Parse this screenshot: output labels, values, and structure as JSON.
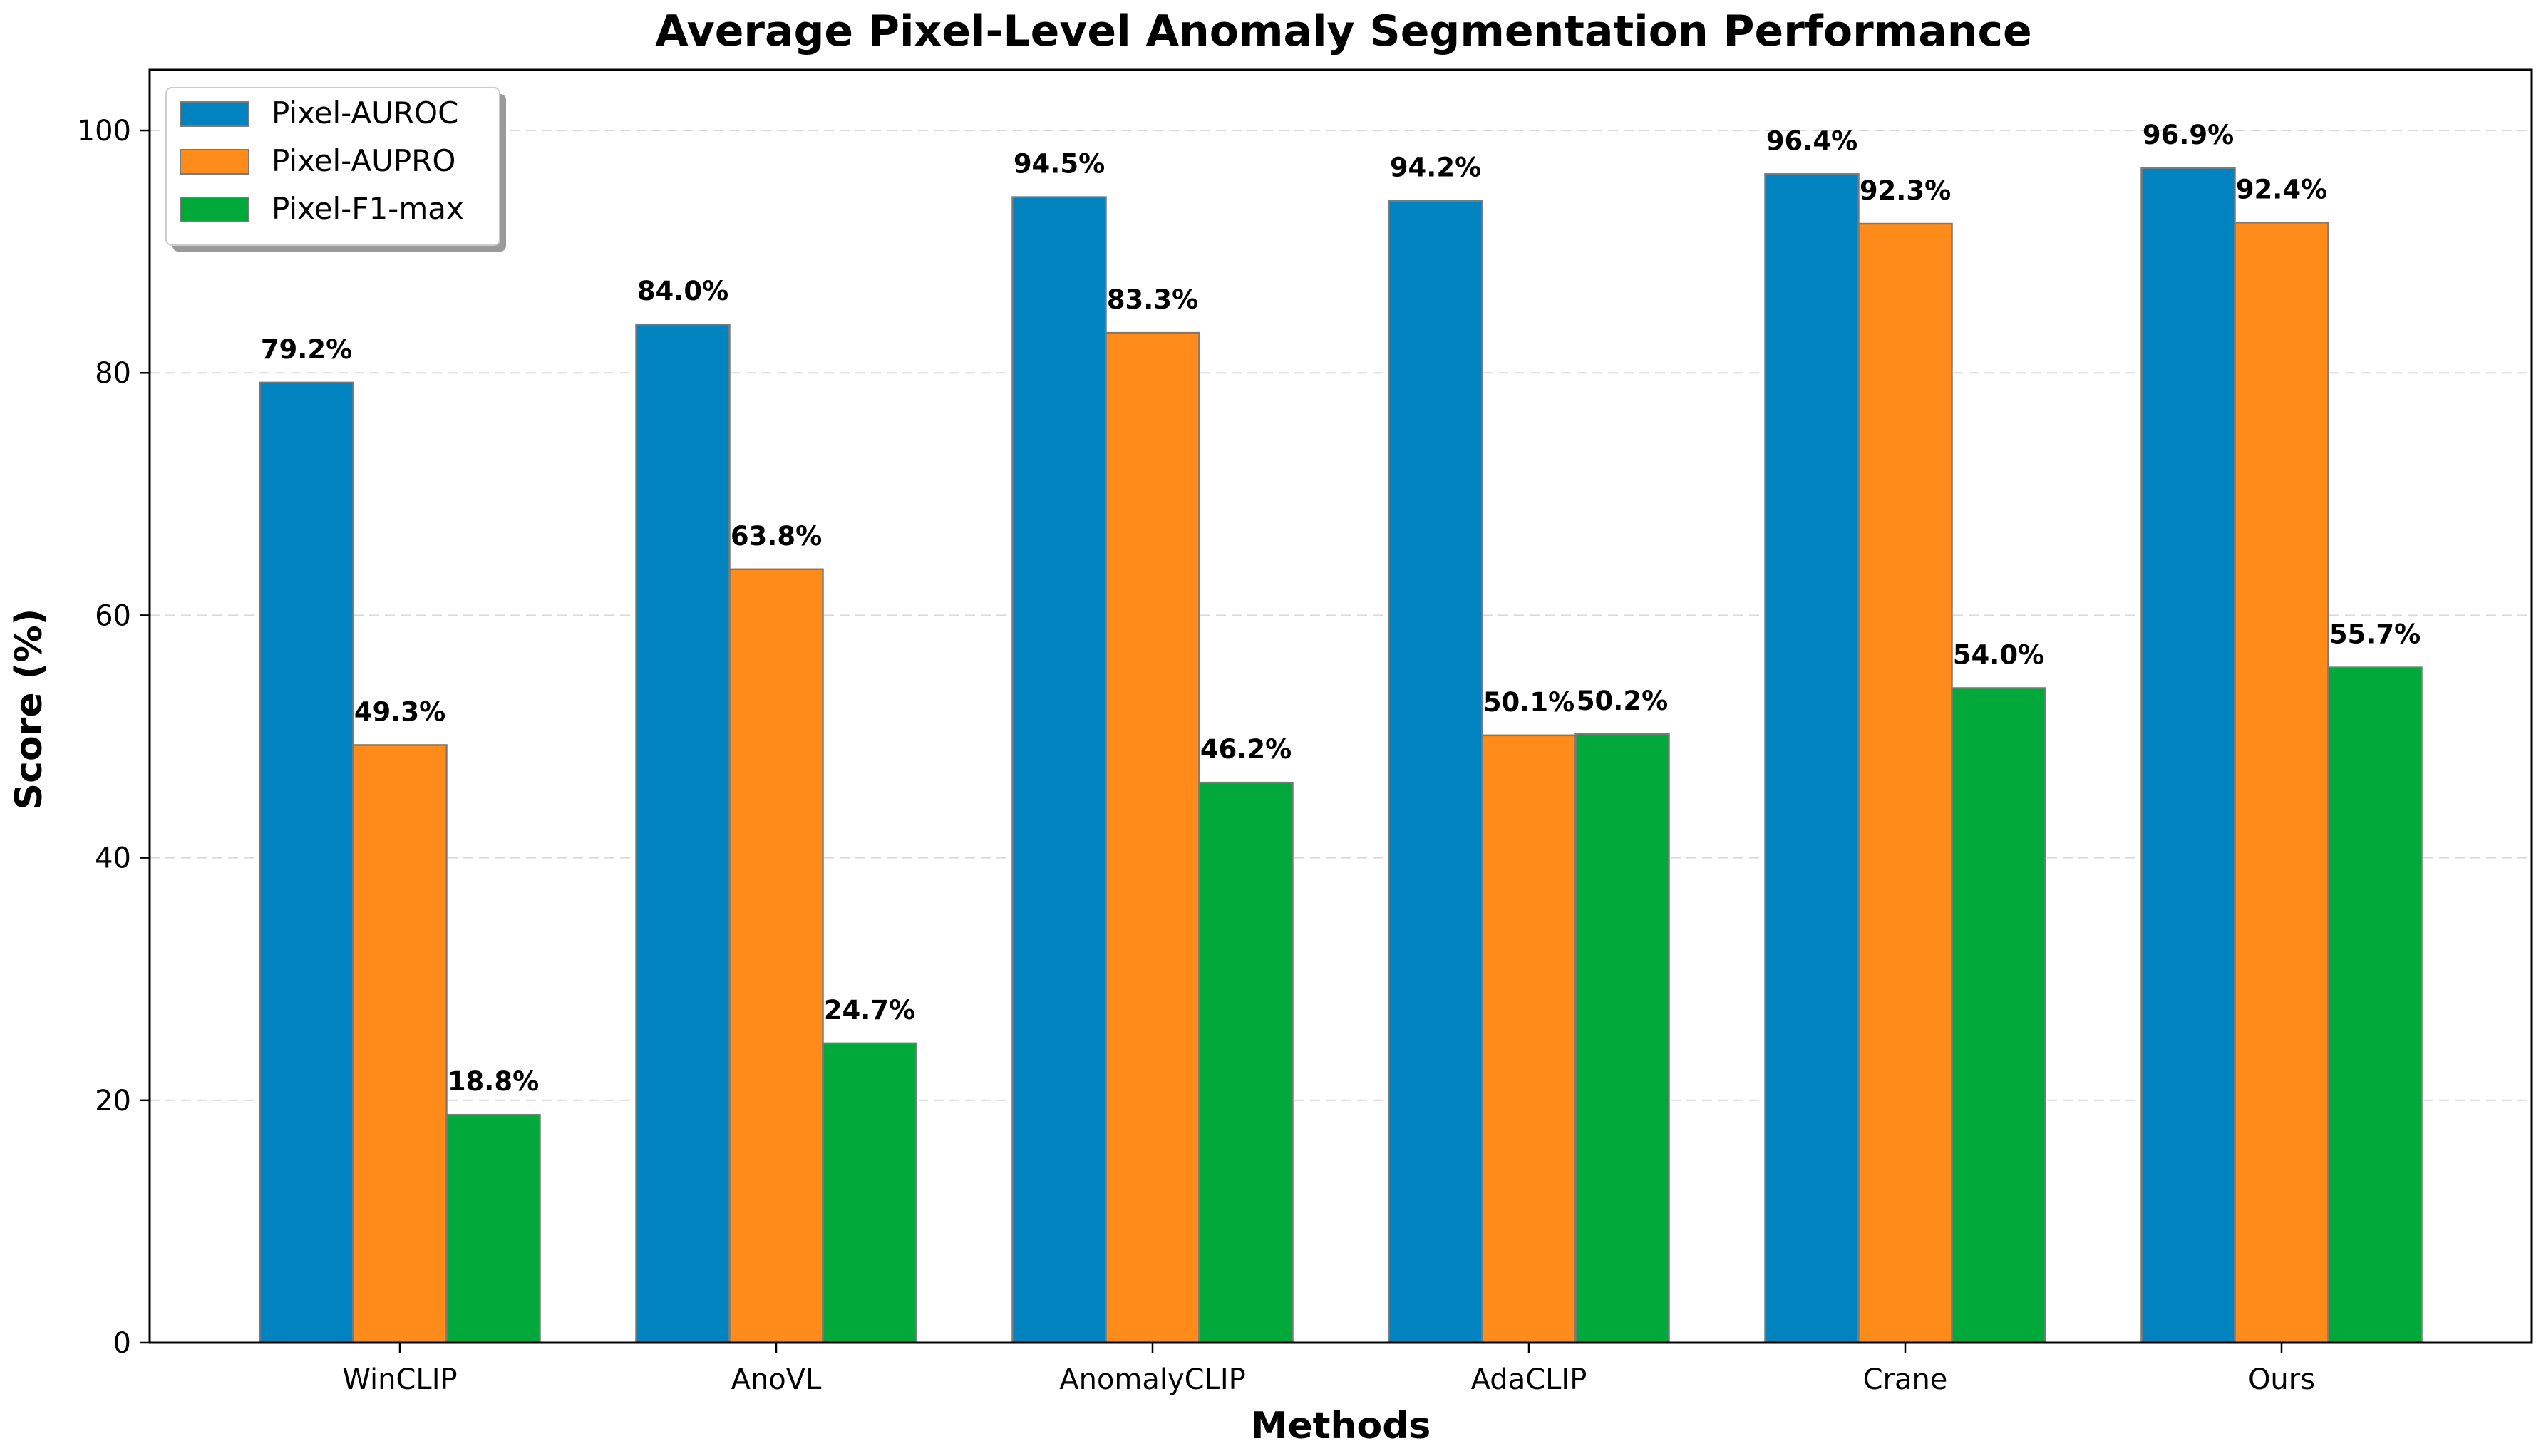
{
  "chart_data": {
    "type": "bar",
    "title": "Average Pixel-Level Anomaly Segmentation Performance",
    "xlabel": "Methods",
    "ylabel": "Score (%)",
    "ylim": [
      0,
      105
    ],
    "yticks": [
      0,
      20,
      40,
      60,
      80,
      100
    ],
    "grid": "y-dashed",
    "legend_position": "top-left",
    "categories": [
      "WinCLIP",
      "AnoVL",
      "AnomalyCLIP",
      "AdaCLIP",
      "Crane",
      "Ours"
    ],
    "series": [
      {
        "name": "Pixel-AUROC",
        "color": "#0083BF",
        "values": [
          79.2,
          84.0,
          94.5,
          94.2,
          96.4,
          96.9
        ],
        "labels": [
          "79.2%",
          "84.0%",
          "94.5%",
          "94.2%",
          "96.4%",
          "96.9%"
        ]
      },
      {
        "name": "Pixel-AUPRO",
        "color": "#FF8C1A",
        "values": [
          49.3,
          63.8,
          83.3,
          50.1,
          92.3,
          92.4
        ],
        "labels": [
          "49.3%",
          "63.8%",
          "83.3%",
          "50.1%",
          "92.3%",
          "92.4%"
        ]
      },
      {
        "name": "Pixel-F1-max",
        "color": "#00A93A",
        "values": [
          18.8,
          24.7,
          46.2,
          50.2,
          54.0,
          55.7
        ],
        "labels": [
          "18.8%",
          "24.7%",
          "46.2%",
          "50.2%",
          "54.0%",
          "55.7%"
        ]
      }
    ]
  }
}
